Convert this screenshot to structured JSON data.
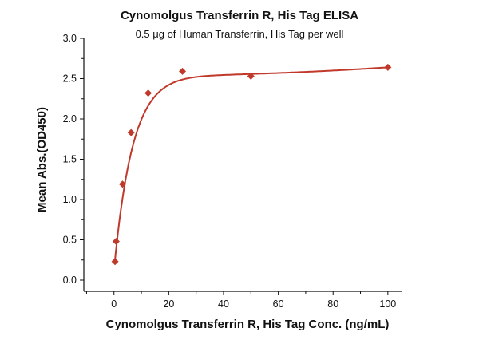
{
  "chart_data": {
    "type": "scatter",
    "title": "Cynomolgus Transferrin R, His Tag ELISA",
    "subtitle": "0.5 μg of Human Transferrin, His Tag per well",
    "xlabel": "Cynomolgus Transferrin R, His Tag Conc. (ng/mL)",
    "ylabel": "Mean Abs.(OD450)",
    "xlim": [
      -11,
      105
    ],
    "ylim": [
      0,
      3.0
    ],
    "xticks": [
      0,
      20,
      40,
      60,
      80,
      100
    ],
    "xtick_labels": [
      "0",
      "20",
      "40",
      "60",
      "80",
      "100"
    ],
    "yticks": [
      0,
      0.5,
      1.0,
      1.5,
      2.0,
      2.5,
      3.0
    ],
    "ytick_labels": [
      "0.0",
      "0.5",
      "1.0",
      "1.5",
      "2.0",
      "2.5",
      "3.0"
    ],
    "grid": false,
    "series": [
      {
        "name": "Mean Abs.",
        "marker": "diamond",
        "x": [
          0.39,
          0.78,
          3.125,
          6.25,
          12.5,
          25,
          50,
          100
        ],
        "y": [
          0.23,
          0.48,
          1.19,
          1.83,
          2.32,
          2.59,
          2.53,
          2.64
        ],
        "fit": "smooth saturation curve"
      }
    ],
    "colors": {
      "series": "#c0392b",
      "axis": "#111111"
    }
  }
}
